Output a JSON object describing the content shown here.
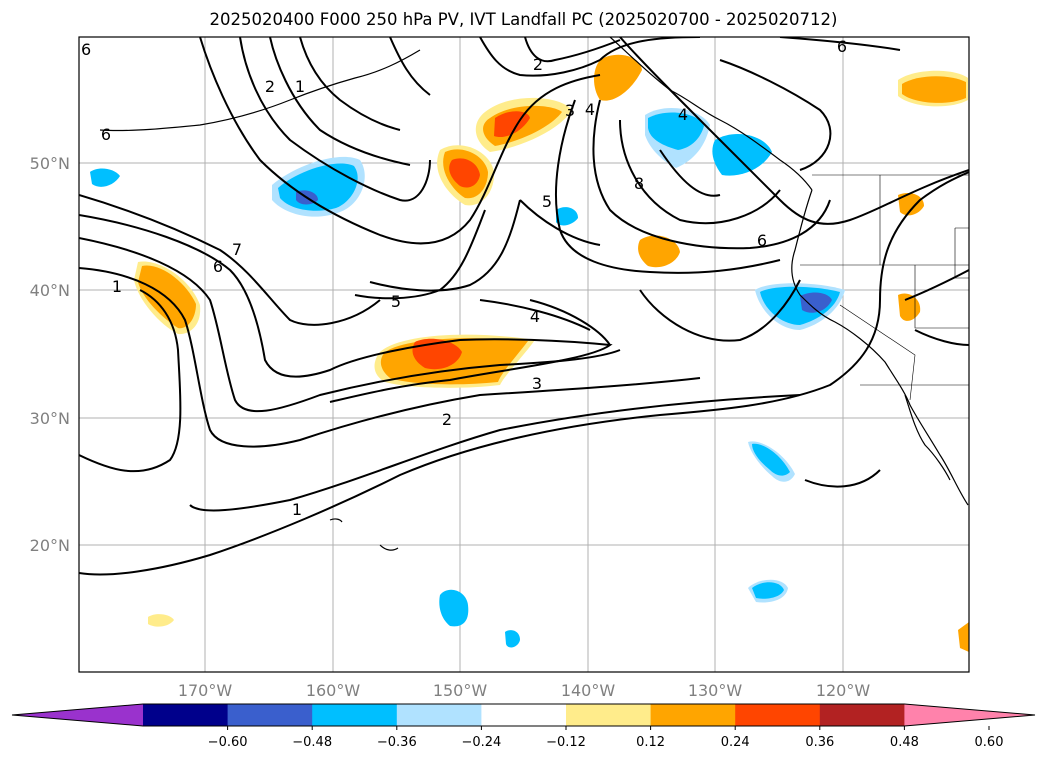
{
  "title": "2025020400 F000 250 hPa PV, IVT Landfall PC (2025020700 - 2025020712)",
  "latitude_labels": [
    "50°N",
    "40°N",
    "30°N",
    "20°N"
  ],
  "longitude_labels": [
    "170°W",
    "160°W",
    "150°W",
    "140°W",
    "130°W",
    "120°W"
  ],
  "contour_labels": [
    "6",
    "2",
    "1",
    "2",
    "4",
    "3",
    "4",
    "5",
    "6",
    "7",
    "6",
    "1",
    "5",
    "4",
    "3",
    "2",
    "1",
    "8",
    "6",
    "6"
  ],
  "colorbar": {
    "ticks": [
      "−0.60",
      "−0.48",
      "−0.36",
      "−0.24",
      "−0.12",
      "0.12",
      "0.24",
      "0.36",
      "0.48",
      "0.60"
    ],
    "colors": [
      "#9a32cd",
      "#00008b",
      "#3a5fcd",
      "#00bfff",
      "#b0e2ff",
      "#ffffff",
      "#ffec8b",
      "#ffa500",
      "#ff4500",
      "#b22222",
      "#ff82ab"
    ]
  }
}
